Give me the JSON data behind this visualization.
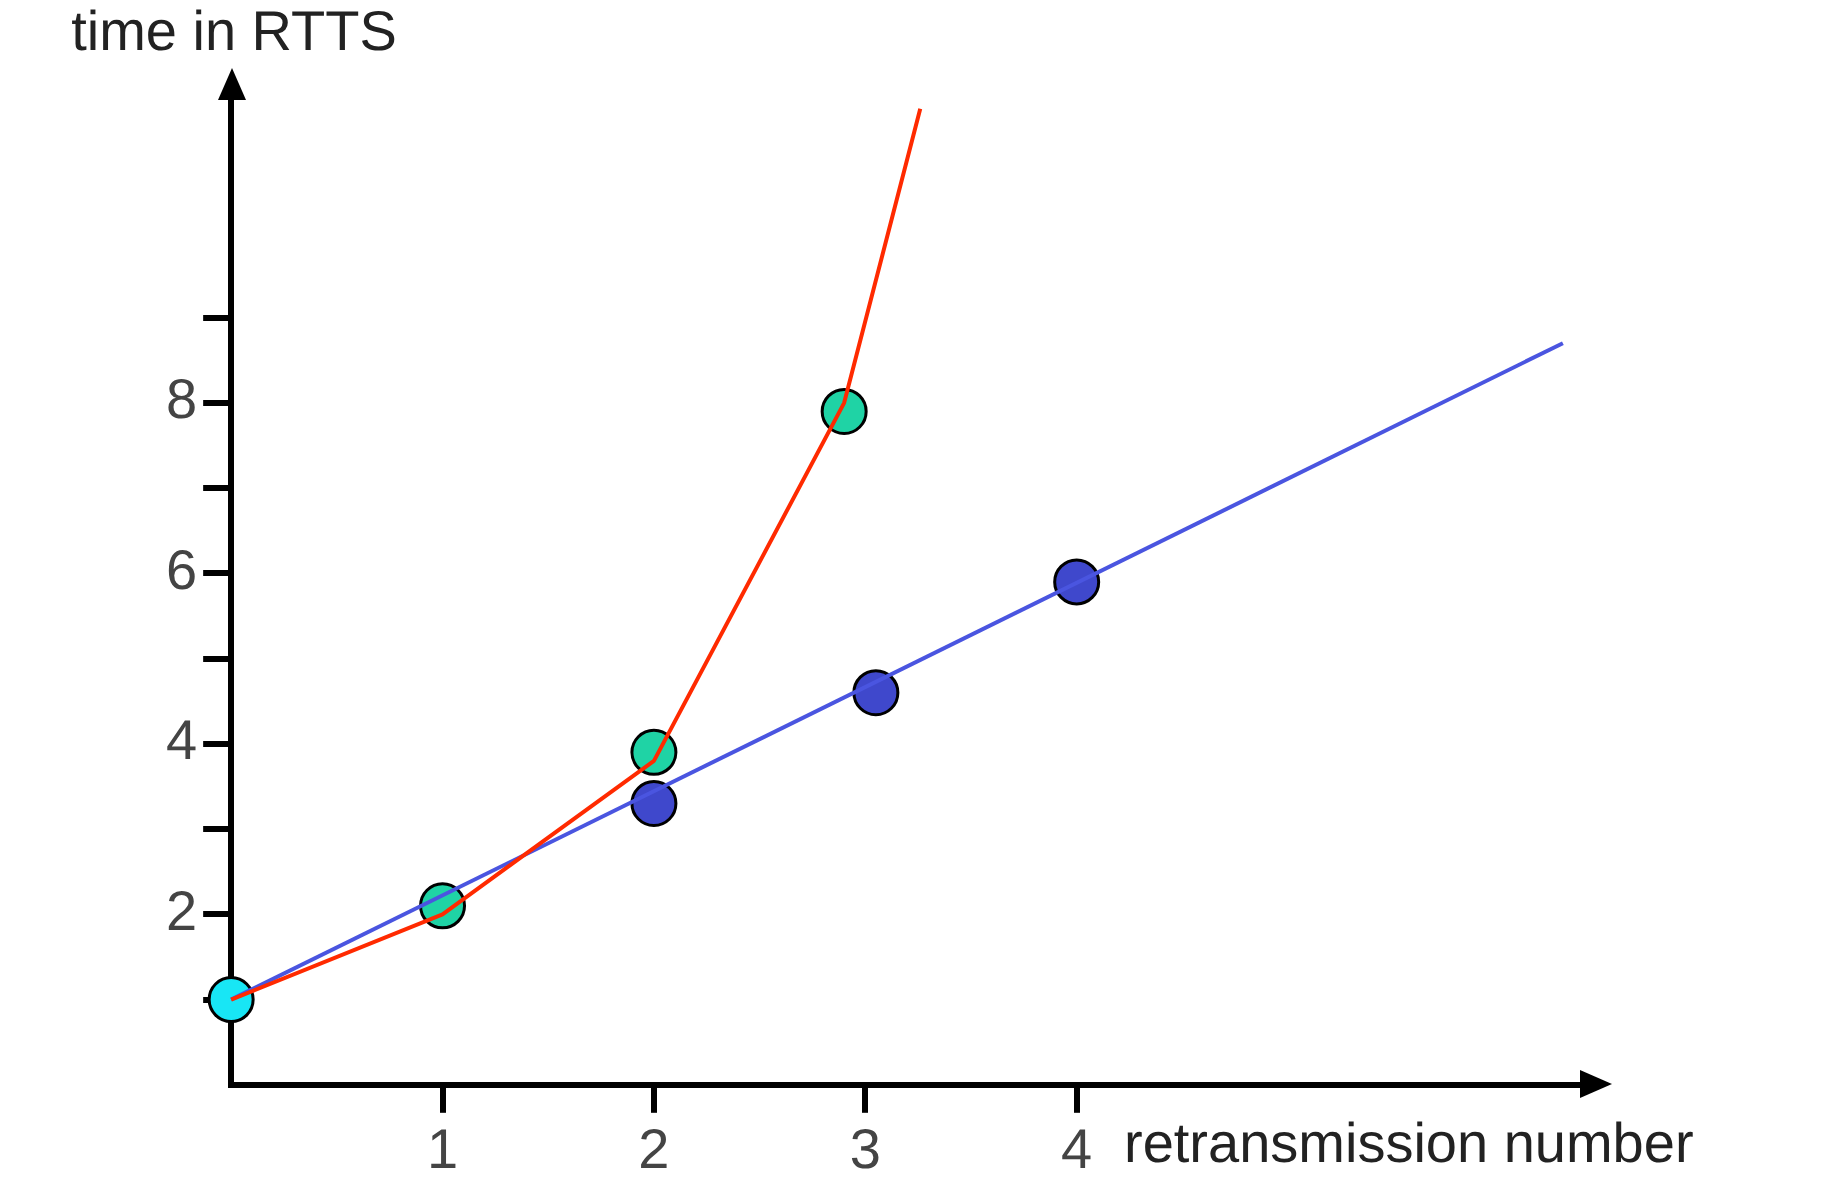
{
  "chart_data": {
    "type": "line",
    "xlabel": "retransmission number",
    "ylabel": "time in RTTS",
    "xlim": [
      0,
      6.4
    ],
    "ylim": [
      0,
      11.6
    ],
    "xticks": [
      1,
      2,
      3,
      4
    ],
    "yticks": [
      {
        "value": 1,
        "label": null
      },
      2,
      {
        "value": 3,
        "label": null
      },
      4,
      {
        "value": 5,
        "label": null
      },
      6,
      {
        "value": 7,
        "label": null
      },
      8,
      {
        "value": 9,
        "label": null
      }
    ],
    "grid": false,
    "legend": false,
    "series": [
      {
        "color": "#ff2a00",
        "marker": "none",
        "x": [
          0,
          1,
          2,
          2.9,
          3.26
        ],
        "values": [
          1,
          2,
          3.8,
          8,
          11.45
        ]
      },
      {
        "color": "#4a55e0",
        "marker": "none",
        "x": [
          0,
          6.3
        ],
        "values": [
          1,
          8.7
        ]
      },
      {
        "type": "scatter",
        "color": "#1fd3a5",
        "marker": "circle",
        "x": [
          1,
          2,
          2.9
        ],
        "values": [
          2.1,
          3.9,
          7.9
        ]
      },
      {
        "type": "scatter",
        "color": "#3f48cc",
        "marker": "circle",
        "x": [
          2,
          3.05,
          4
        ],
        "values": [
          3.3,
          4.6,
          5.9
        ]
      },
      {
        "type": "scatter",
        "color": "#18e6f5",
        "marker": "circle",
        "x": [
          0
        ],
        "values": [
          1
        ]
      }
    ]
  }
}
